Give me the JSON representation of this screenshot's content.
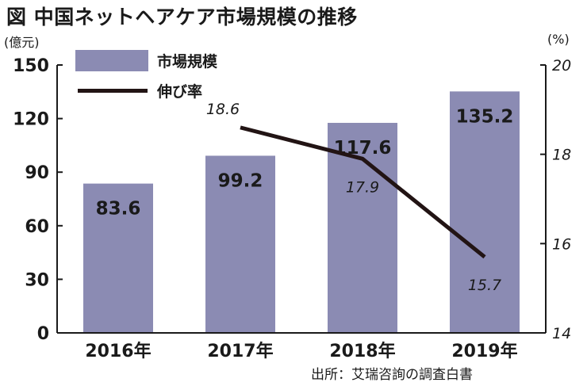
{
  "figure": {
    "title": "図 中国ネットヘアケア市場規模の推移",
    "source": "出所：艾瑞咨詢の調査白書"
  },
  "legend": {
    "bar_label": "市場規模",
    "line_label": "伸び率"
  },
  "axis": {
    "left_unit": "(億元)",
    "right_unit": "(%)"
  },
  "colors": {
    "bar": "#8b8bb3",
    "line": "#221414",
    "axis": "#1a1a1a"
  },
  "chart_data": {
    "type": "bar",
    "title": "図 中国ネットヘアケア市場規模の推移",
    "categories": [
      "2016年",
      "2017年",
      "2018年",
      "2019年"
    ],
    "series": [
      {
        "name": "市場規模",
        "type": "bar",
        "axis": "left",
        "values": [
          83.6,
          99.2,
          117.6,
          135.2
        ]
      },
      {
        "name": "伸び率",
        "type": "line",
        "axis": "right",
        "values": [
          null,
          18.6,
          17.9,
          15.7
        ]
      }
    ],
    "ylabel": "(億元)",
    "y2label": "(%)",
    "ylim": [
      0,
      150
    ],
    "yticks": [
      0,
      30,
      60,
      90,
      120,
      150
    ],
    "y2lim": [
      14,
      20
    ],
    "y2ticks": [
      14,
      16,
      18,
      20
    ],
    "grid": false,
    "legend_position": "top-left"
  }
}
